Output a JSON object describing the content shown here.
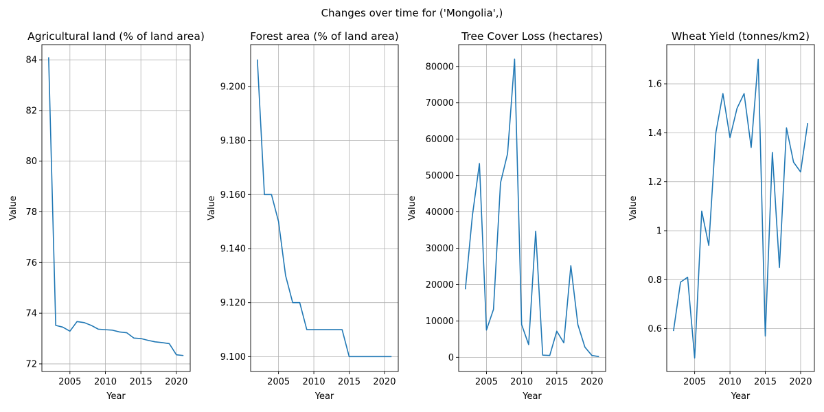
{
  "figure": {
    "suptitle": "Changes over time for ('Mongolia',)"
  },
  "colors": {
    "line": "#1f77b4",
    "grid": "#b0b0b0",
    "axes": "#000000",
    "background": "#ffffff"
  },
  "chart_data": [
    {
      "type": "line",
      "title": "Agricultural land (% of land area)",
      "xlabel": "Year",
      "ylabel": "Value",
      "grid": true,
      "xlim": [
        2001.05,
        2021.95
      ],
      "ylim": [
        71.7,
        84.6
      ],
      "xticks": [
        2005,
        2010,
        2015,
        2020
      ],
      "yticks": [
        72,
        74,
        76,
        78,
        80,
        82,
        84
      ],
      "series": [
        {
          "x": [
            2002,
            2003,
            2004,
            2005,
            2006,
            2007,
            2008,
            2009,
            2010,
            2011,
            2012,
            2013,
            2014,
            2015,
            2016,
            2017,
            2018,
            2019,
            2020,
            2021
          ],
          "y": [
            84.1,
            73.52,
            73.45,
            73.29,
            73.67,
            73.63,
            73.52,
            73.37,
            73.35,
            73.33,
            73.26,
            73.23,
            73.02,
            73.0,
            72.93,
            72.87,
            72.84,
            72.8,
            72.36,
            72.33
          ]
        }
      ]
    },
    {
      "type": "line",
      "title": "Forest area (% of land area)",
      "xlabel": "Year",
      "ylabel": "Value",
      "grid": true,
      "xlim": [
        2001.05,
        2021.95
      ],
      "ylim": [
        9.0945,
        9.2155
      ],
      "xticks": [
        2005,
        2010,
        2015,
        2020
      ],
      "yticks": [
        9.1,
        9.12,
        9.14,
        9.16,
        9.18,
        9.2
      ],
      "ytick_labels": [
        "9.100",
        "9.120",
        "9.140",
        "9.160",
        "9.180",
        "9.200"
      ],
      "series": [
        {
          "x": [
            2002,
            2003,
            2004,
            2005,
            2006,
            2007,
            2008,
            2009,
            2010,
            2011,
            2012,
            2013,
            2014,
            2015,
            2016,
            2017,
            2018,
            2019,
            2020,
            2021
          ],
          "y": [
            9.21,
            9.16,
            9.16,
            9.15,
            9.13,
            9.12,
            9.12,
            9.11,
            9.11,
            9.11,
            9.11,
            9.11,
            9.11,
            9.1,
            9.1,
            9.1,
            9.1,
            9.1,
            9.1,
            9.1
          ]
        }
      ]
    },
    {
      "type": "line",
      "title": "Tree Cover Loss (hectares)",
      "xlabel": "Year",
      "ylabel": "Value",
      "grid": true,
      "xlim": [
        2001.05,
        2021.95
      ],
      "ylim": [
        -3900,
        86000
      ],
      "xticks": [
        2005,
        2010,
        2015,
        2020
      ],
      "yticks": [
        0,
        10000,
        20000,
        30000,
        40000,
        50000,
        60000,
        70000,
        80000
      ],
      "series": [
        {
          "x": [
            2002,
            2003,
            2004,
            2005,
            2006,
            2007,
            2008,
            2009,
            2010,
            2011,
            2012,
            2013,
            2014,
            2015,
            2016,
            2017,
            2018,
            2019,
            2020,
            2021
          ],
          "y": [
            18700,
            39000,
            53300,
            7500,
            13200,
            48000,
            56000,
            82000,
            9000,
            3500,
            34700,
            600,
            500,
            7200,
            4000,
            25200,
            9000,
            2800,
            500,
            200
          ]
        }
      ]
    },
    {
      "type": "line",
      "title": "Wheat Yield (tonnes/km2)",
      "xlabel": "Year",
      "ylabel": "Value",
      "grid": true,
      "xlim": [
        2001.05,
        2021.95
      ],
      "ylim": [
        0.425,
        1.76
      ],
      "xticks": [
        2005,
        2010,
        2015,
        2020
      ],
      "yticks": [
        0.6,
        0.8,
        1.0,
        1.2,
        1.4,
        1.6
      ],
      "series": [
        {
          "x": [
            2002,
            2003,
            2004,
            2005,
            2006,
            2007,
            2008,
            2009,
            2010,
            2011,
            2012,
            2013,
            2014,
            2015,
            2016,
            2017,
            2018,
            2019,
            2020,
            2021
          ],
          "y": [
            0.59,
            0.79,
            0.81,
            0.48,
            1.08,
            0.94,
            1.4,
            1.56,
            1.38,
            1.5,
            1.56,
            1.34,
            1.7,
            0.57,
            1.32,
            0.85,
            1.42,
            1.28,
            1.24,
            1.44
          ]
        }
      ]
    }
  ]
}
